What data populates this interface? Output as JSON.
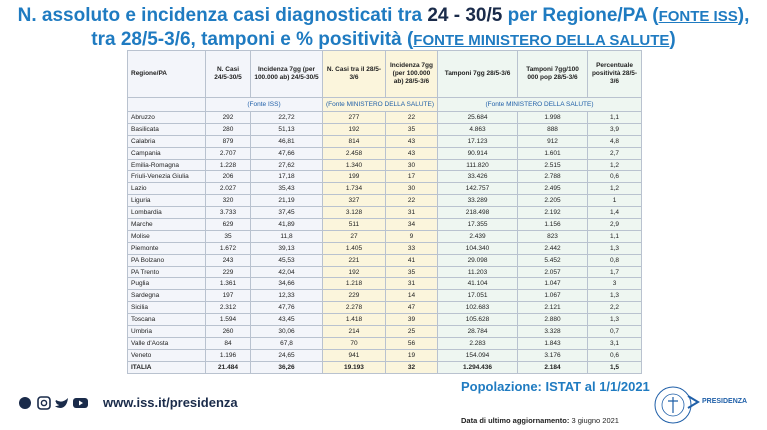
{
  "title": {
    "parts": [
      "N. assoluto e incidenza casi diagnosticati tra ",
      "24 - 30/5",
      " per Regione/PA (",
      "FONTE ISS",
      "), tra 28/5-3/6, tamponi e % positività (",
      "FONTE MINISTERO DELLA SALUTE",
      ")"
    ]
  },
  "table": {
    "headers": [
      "Regione/PA",
      "N. Casi 24/5-30/5",
      "Incidenza 7gg (per 100.000 ab) 24/5-30/5",
      "N. Casi tra il 28/5-3/6",
      "Incidenza 7gg (per 100.000 ab) 28/5-3/6",
      "Tamponi 7gg 28/5-3/6",
      "Tamponi 7gg/100 000 pop 28/5-3/6",
      "Percentuale positività 28/5-3/6"
    ],
    "sources": [
      "(Fonte ISS)",
      "(Fonte MINISTERO  DELLA SALUTE)",
      "(Fonte MINISTERO DELLA SALUTE)"
    ],
    "rows": [
      [
        "Abruzzo",
        "292",
        "22,72",
        "277",
        "22",
        "25.684",
        "1.998",
        "1,1"
      ],
      [
        "Basilicata",
        "280",
        "51,13",
        "192",
        "35",
        "4.863",
        "888",
        "3,9"
      ],
      [
        "Calabria",
        "879",
        "46,81",
        "814",
        "43",
        "17.123",
        "912",
        "4,8"
      ],
      [
        "Campania",
        "2.707",
        "47,66",
        "2.458",
        "43",
        "90.914",
        "1.601",
        "2,7"
      ],
      [
        "Emilia-Romagna",
        "1.228",
        "27,62",
        "1.340",
        "30",
        "111.820",
        "2.515",
        "1,2"
      ],
      [
        "Friuli-Venezia Giulia",
        "206",
        "17,18",
        "199",
        "17",
        "33.426",
        "2.788",
        "0,6"
      ],
      [
        "Lazio",
        "2.027",
        "35,43",
        "1.734",
        "30",
        "142.757",
        "2.495",
        "1,2"
      ],
      [
        "Liguria",
        "320",
        "21,19",
        "327",
        "22",
        "33.289",
        "2.205",
        "1"
      ],
      [
        "Lombardia",
        "3.733",
        "37,45",
        "3.128",
        "31",
        "218.498",
        "2.192",
        "1,4"
      ],
      [
        "Marche",
        "629",
        "41,89",
        "511",
        "34",
        "17.355",
        "1.156",
        "2,9"
      ],
      [
        "Molise",
        "35",
        "11,8",
        "27",
        "9",
        "2.439",
        "823",
        "1,1"
      ],
      [
        "Piemonte",
        "1.672",
        "39,13",
        "1.405",
        "33",
        "104.340",
        "2.442",
        "1,3"
      ],
      [
        "PA Bolzano",
        "243",
        "45,53",
        "221",
        "41",
        "29.098",
        "5.452",
        "0,8"
      ],
      [
        "PA Trento",
        "229",
        "42,04",
        "192",
        "35",
        "11.203",
        "2.057",
        "1,7"
      ],
      [
        "Puglia",
        "1.361",
        "34,66",
        "1.218",
        "31",
        "41.104",
        "1.047",
        "3"
      ],
      [
        "Sardegna",
        "197",
        "12,33",
        "229",
        "14",
        "17.051",
        "1.067",
        "1,3"
      ],
      [
        "Sicilia",
        "2.312",
        "47,76",
        "2.278",
        "47",
        "102.683",
        "2.121",
        "2,2"
      ],
      [
        "Toscana",
        "1.594",
        "43,45",
        "1.418",
        "39",
        "105.628",
        "2.880",
        "1,3"
      ],
      [
        "Umbria",
        "260",
        "30,06",
        "214",
        "25",
        "28.784",
        "3.328",
        "0,7"
      ],
      [
        "Valle d'Aosta",
        "84",
        "67,8",
        "70",
        "56",
        "2.283",
        "1.843",
        "3,1"
      ],
      [
        "Veneto",
        "1.196",
        "24,65",
        "941",
        "19",
        "154.094",
        "3.176",
        "0,6"
      ],
      [
        "ITALIA",
        "21.484",
        "36,26",
        "19.193",
        "32",
        "1.294.436",
        "2.184",
        "1,5"
      ]
    ]
  },
  "population_note": "Popolazione: ISTAT al 1/1/2021",
  "footer": {
    "url": "www.iss.it/presidenza",
    "update_label": "Data di ultimo aggiornamento:",
    "update_date": "3 giugno 2021",
    "logo_text": "PRESIDENZA"
  }
}
